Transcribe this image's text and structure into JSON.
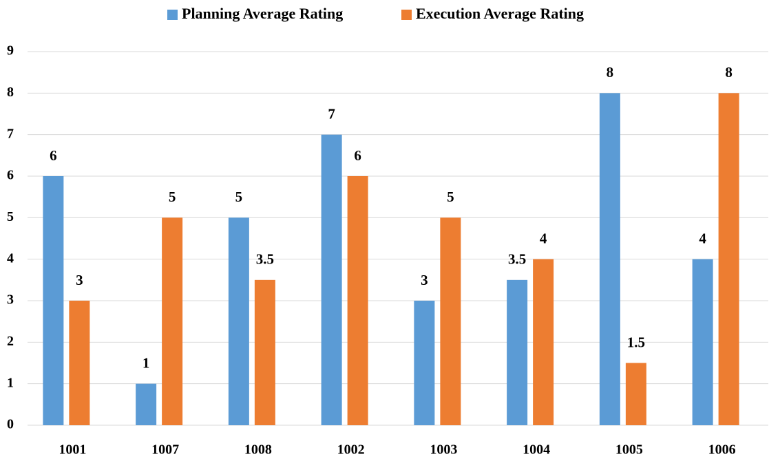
{
  "chart_data": {
    "type": "bar",
    "categories": [
      "1001",
      "1007",
      "1008",
      "1002",
      "1003",
      "1004",
      "1005",
      "1006"
    ],
    "series": [
      {
        "name": "Planning Average Rating",
        "color": "#5b9bd5",
        "values": [
          6,
          1,
          5,
          7,
          3,
          3.5,
          8,
          4
        ]
      },
      {
        "name": "Execution Average Rating",
        "color": "#ed7d31",
        "values": [
          3,
          5,
          3.5,
          6,
          5,
          4,
          1.5,
          8
        ]
      }
    ],
    "ylim": [
      0,
      9
    ],
    "yticks": [
      0,
      1,
      2,
      3,
      4,
      5,
      6,
      7,
      8,
      9
    ],
    "grid": true,
    "legend": "top"
  }
}
